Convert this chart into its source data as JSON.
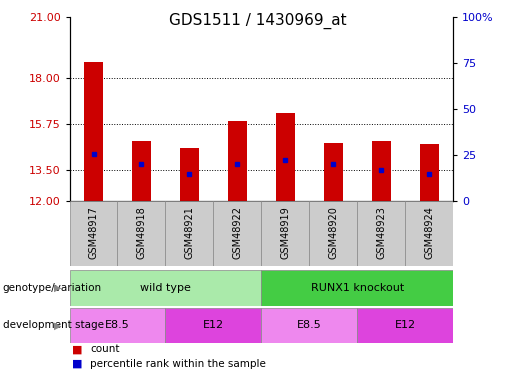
{
  "title": "GDS1511 / 1430969_at",
  "samples": [
    "GSM48917",
    "GSM48918",
    "GSM48921",
    "GSM48922",
    "GSM48919",
    "GSM48920",
    "GSM48923",
    "GSM48924"
  ],
  "red_values": [
    18.8,
    14.9,
    14.6,
    15.9,
    16.3,
    14.8,
    14.9,
    14.75
  ],
  "blue_values": [
    14.3,
    13.8,
    13.3,
    13.8,
    14.0,
    13.8,
    13.5,
    13.3
  ],
  "ylim_left": [
    12,
    21
  ],
  "ylim_right": [
    0,
    100
  ],
  "yticks_left": [
    12,
    13.5,
    15.75,
    18,
    21
  ],
  "yticks_right": [
    0,
    25,
    50,
    75,
    100
  ],
  "ytick_labels_right": [
    "0",
    "25",
    "50",
    "75",
    "100%"
  ],
  "bar_color": "#cc0000",
  "blue_color": "#0000cc",
  "bar_width": 0.4,
  "grid_color": "black",
  "groups": [
    {
      "label": "wild type",
      "start": 0,
      "end": 4,
      "color": "#aaeaaa"
    },
    {
      "label": "RUNX1 knockout",
      "start": 4,
      "end": 8,
      "color": "#44cc44"
    }
  ],
  "stages": [
    {
      "label": "E8.5",
      "start": 0,
      "end": 2,
      "color": "#ee88ee"
    },
    {
      "label": "E12",
      "start": 2,
      "end": 4,
      "color": "#dd44dd"
    },
    {
      "label": "E8.5",
      "start": 4,
      "end": 6,
      "color": "#ee88ee"
    },
    {
      "label": "E12",
      "start": 6,
      "end": 8,
      "color": "#dd44dd"
    }
  ],
  "legend_red_label": "count",
  "legend_blue_label": "percentile rank within the sample",
  "tick_label_color_left": "#cc0000",
  "tick_label_color_right": "#0000cc",
  "sample_box_color": "#cccccc",
  "left_label_color": "#000000",
  "arrow_color": "#888888"
}
